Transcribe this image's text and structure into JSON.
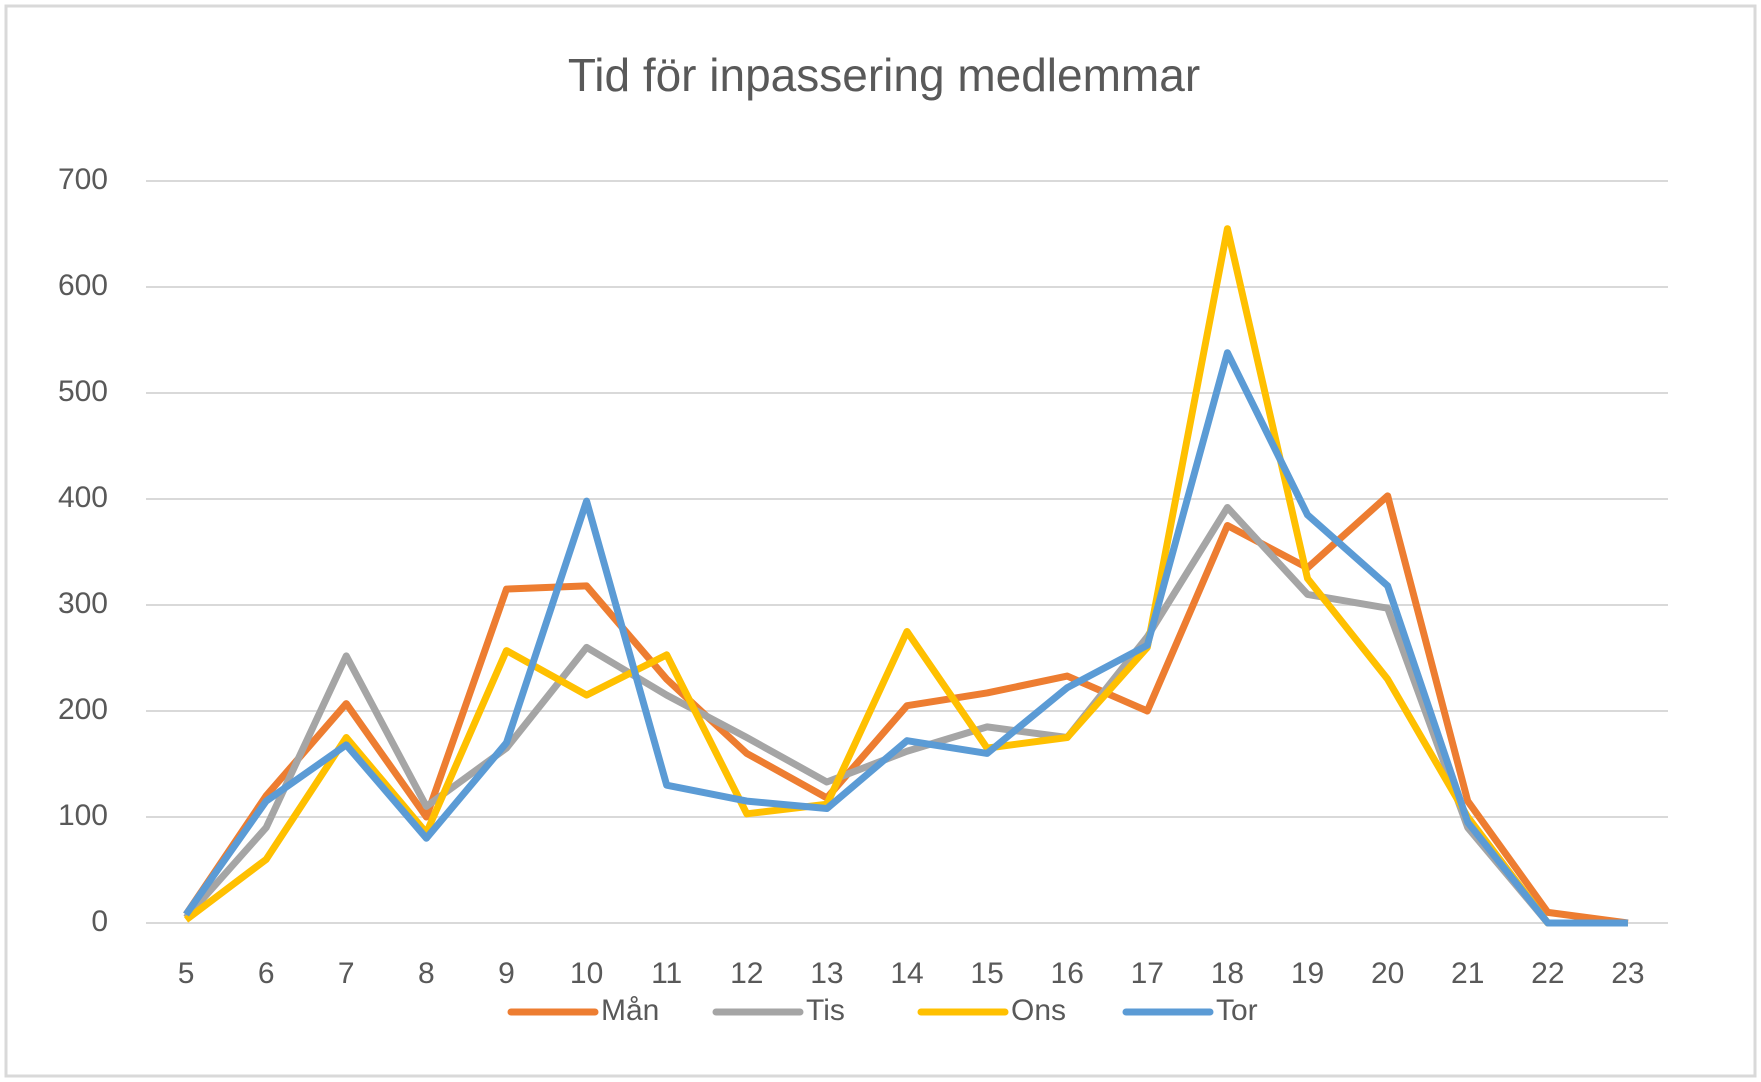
{
  "chart_data": {
    "type": "line",
    "title": "Tid för inpassering medlemmar",
    "categories": [
      "5",
      "6",
      "7",
      "8",
      "9",
      "10",
      "11",
      "12",
      "13",
      "14",
      "15",
      "16",
      "17",
      "18",
      "19",
      "20",
      "21",
      "22",
      "23"
    ],
    "series": [
      {
        "name": "Mån",
        "color": "#ed7d31",
        "values": [
          8,
          120,
          207,
          100,
          315,
          318,
          230,
          160,
          118,
          205,
          217,
          233,
          200,
          375,
          335,
          403,
          115,
          10,
          0
        ]
      },
      {
        "name": "Tis",
        "color": "#a5a5a5",
        "values": [
          5,
          90,
          252,
          110,
          165,
          260,
          215,
          175,
          133,
          162,
          185,
          175,
          270,
          392,
          310,
          297,
          90,
          0,
          0
        ]
      },
      {
        "name": "Ons",
        "color": "#ffc000",
        "values": [
          3,
          60,
          175,
          85,
          257,
          215,
          253,
          103,
          112,
          275,
          165,
          175,
          260,
          655,
          325,
          230,
          100,
          0,
          0
        ]
      },
      {
        "name": "Tor",
        "color": "#5b9bd5",
        "values": [
          8,
          115,
          168,
          80,
          170,
          398,
          130,
          115,
          108,
          172,
          160,
          222,
          262,
          538,
          385,
          318,
          95,
          0,
          0
        ]
      }
    ],
    "ylim": [
      0,
      700
    ],
    "yticks": [
      0,
      100,
      200,
      300,
      400,
      500,
      600,
      700
    ],
    "grid": true,
    "legend": "bottom"
  }
}
